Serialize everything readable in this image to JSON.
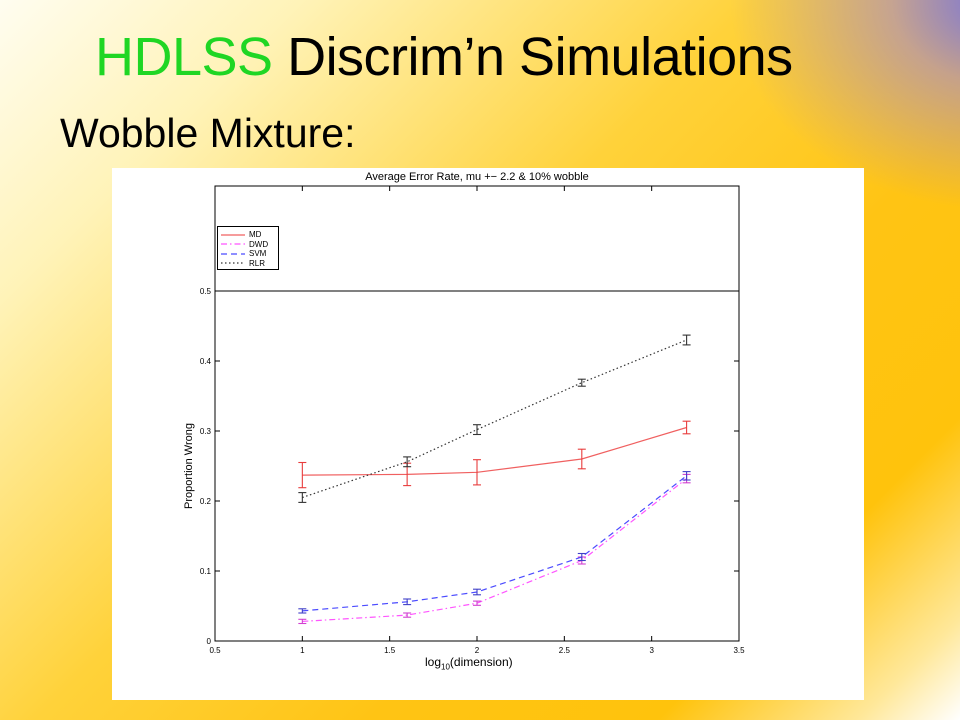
{
  "slide": {
    "title_part1": "HDLSS",
    "title_part2": " Discrim’n Simulations",
    "subtitle": "Wobble Mixture:"
  },
  "chart_data": {
    "type": "line",
    "title": "Average Error Rate, mu +− 2.2 & 10% wobble",
    "xlabel_main": "log",
    "xlabel_sub": "10",
    "xlabel_rest": "(dimension)",
    "ylabel": "Proportion Wrong",
    "xlim": [
      0.5,
      3.5
    ],
    "ylim": [
      0,
      0.5
    ],
    "frame_top_y": 0.65,
    "x_ticks": [
      0.5,
      1,
      1.5,
      2,
      2.5,
      3,
      3.5
    ],
    "y_ticks": [
      0,
      0.1,
      0.2,
      0.3,
      0.4,
      0.5
    ],
    "x_tick_labels": [
      "0.5",
      "1",
      "1.5",
      "2",
      "2.5",
      "3",
      "3.5"
    ],
    "y_tick_labels": [
      "0",
      "0.1",
      "0.2",
      "0.3",
      "0.4",
      "0.5"
    ],
    "reference_line_y": 0.5,
    "x": [
      1.0,
      1.6,
      2.0,
      2.6,
      3.2
    ],
    "series": [
      {
        "name": "MD",
        "color": "#f06060",
        "dash": "",
        "err_color": "#e83c3c",
        "values": [
          0.237,
          0.238,
          0.241,
          0.26,
          0.305
        ],
        "errors": [
          0.018,
          0.016,
          0.018,
          0.014,
          0.009
        ]
      },
      {
        "name": "DWD",
        "color": "#ff55ff",
        "dash": "6,3,1.5,3",
        "err_color": "#d040d0",
        "values": [
          0.028,
          0.037,
          0.054,
          0.115,
          0.232
        ],
        "errors": [
          0.003,
          0.003,
          0.003,
          0.005,
          0.006
        ]
      },
      {
        "name": "SVM",
        "color": "#4b4bff",
        "dash": "6,4",
        "err_color": "#4040c8",
        "values": [
          0.043,
          0.056,
          0.07,
          0.12,
          0.236
        ],
        "errors": [
          0.003,
          0.004,
          0.004,
          0.005,
          0.006
        ]
      },
      {
        "name": "RLR",
        "color": "#333333",
        "dash": "1.5,2.5",
        "err_color": "#333333",
        "values": [
          0.205,
          0.256,
          0.302,
          0.369,
          0.43
        ],
        "errors": [
          0.007,
          0.007,
          0.007,
          0.005,
          0.007
        ]
      }
    ]
  }
}
